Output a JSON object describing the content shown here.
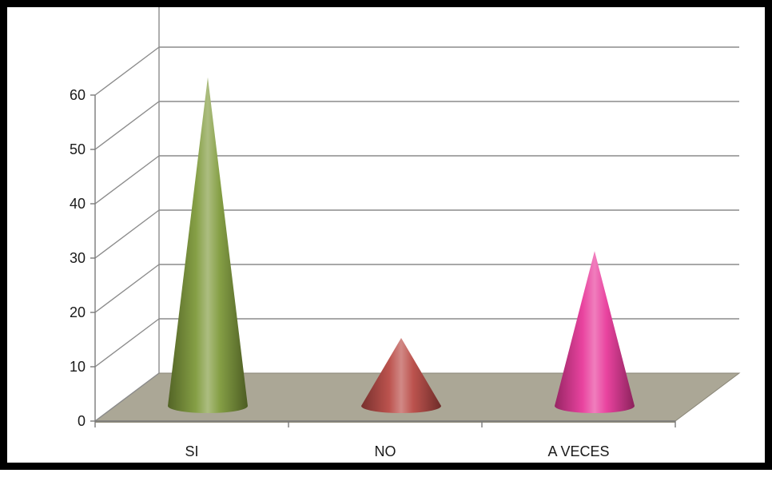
{
  "chart_data": {
    "type": "bar",
    "bar_shape": "cone",
    "categories": [
      "SI",
      "NO",
      "A VECES"
    ],
    "values": [
      63,
      15,
      31
    ],
    "colors": [
      "#7f9a3b",
      "#b84a45",
      "#e8399a"
    ],
    "y_ticks": [
      "0",
      "10",
      "20",
      "30",
      "40",
      "50",
      "60"
    ],
    "ylim": [
      0,
      70
    ],
    "title": "",
    "xlabel": "",
    "ylabel": "",
    "grid": true,
    "legend": "none",
    "floor_color": "#aba796"
  }
}
